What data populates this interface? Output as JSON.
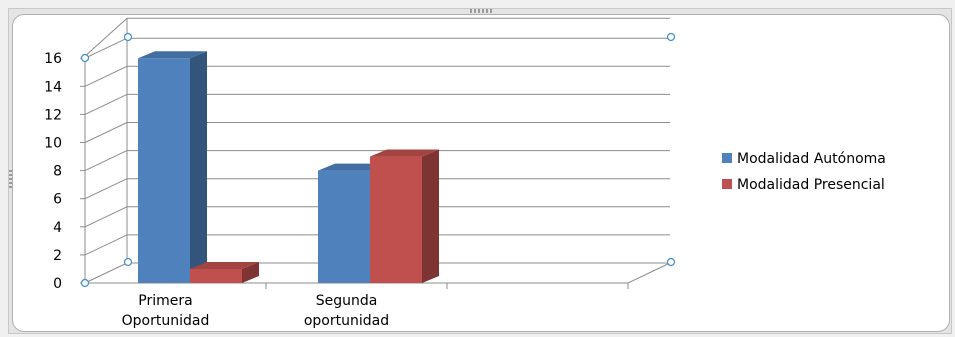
{
  "chart_data": {
    "type": "bar",
    "categories": [
      "Primera Oportunidad",
      "Segunda oportunidad"
    ],
    "category_lines": [
      [
        "Primera",
        "Oportunidad"
      ],
      [
        "Segunda",
        "oportunidad"
      ]
    ],
    "series": [
      {
        "name": "Modalidad Autónoma",
        "values": [
          16,
          8
        ],
        "color": "#4f81bd"
      },
      {
        "name": "Modalidad Presencial",
        "values": [
          1,
          9
        ],
        "color": "#c0504d"
      }
    ],
    "ylim": [
      0,
      16
    ],
    "yticks": [
      "0",
      "2",
      "4",
      "6",
      "8",
      "10",
      "12",
      "14",
      "16"
    ],
    "grid": true,
    "legend": "right"
  }
}
